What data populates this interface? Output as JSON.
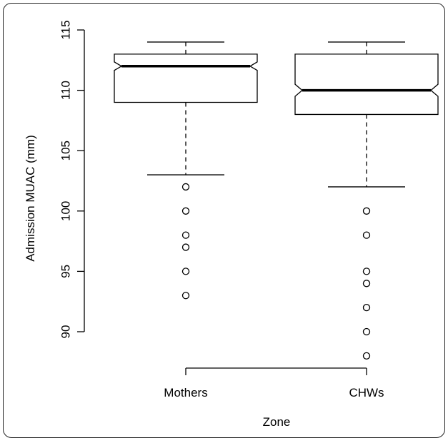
{
  "chart_data": {
    "type": "boxplot",
    "notched": true,
    "xlabel": "Zone",
    "ylabel": "Admission MUAC (mm)",
    "ylim": [
      87.7,
      115
    ],
    "y_ticks": [
      90,
      95,
      100,
      105,
      110,
      115
    ],
    "categories": [
      "Mothers",
      "CHWs"
    ],
    "boxes": [
      {
        "category": "Mothers",
        "whisker_low": 103,
        "q1": 109,
        "median": 112,
        "q3": 113,
        "whisker_high": 114,
        "notch_low": 111.65,
        "notch_high": 112.35,
        "outliers": [
          102,
          100,
          98,
          97,
          95,
          93
        ]
      },
      {
        "category": "CHWs",
        "whisker_low": 102,
        "q1": 108,
        "median": 110,
        "q3": 113,
        "whisker_high": 114,
        "notch_low": 109.5,
        "notch_high": 110.5,
        "outliers": [
          100,
          98,
          95,
          94,
          92,
          90,
          88
        ]
      }
    ],
    "grid": false,
    "legend": "none"
  }
}
